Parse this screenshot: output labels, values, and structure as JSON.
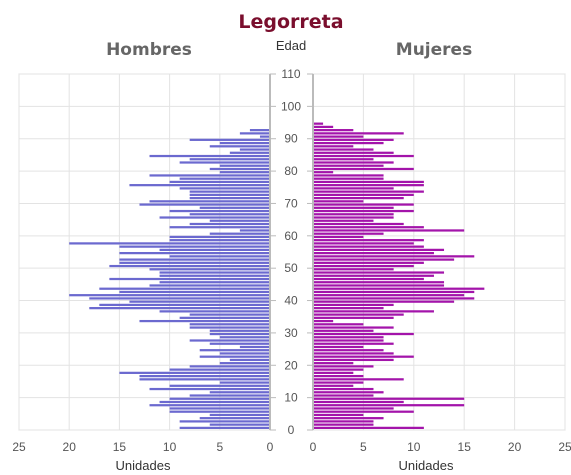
{
  "chart_data": {
    "type": "bar",
    "title": "Legorreta",
    "panels": [
      {
        "name": "Hombres",
        "xlabel": "Unidades",
        "color": "#6b69cf"
      },
      {
        "name": "Mujeres",
        "xlabel": "Unidades",
        "color": "#a314aa"
      }
    ],
    "ylabel": "Edad",
    "y_ticks": [
      "0",
      "10",
      "20",
      "30",
      "40",
      "50",
      "60",
      "70",
      "80",
      "90",
      "100",
      "110"
    ],
    "x_ticks": [
      "25",
      "20",
      "15",
      "10",
      "5",
      "0"
    ],
    "x_ticks_right": [
      "0",
      "5",
      "10",
      "15",
      "20",
      "25"
    ],
    "xlim": [
      0,
      25
    ],
    "ylim": [
      0,
      110
    ],
    "grid": true,
    "ages": [
      0,
      1,
      2,
      3,
      4,
      5,
      6,
      7,
      8,
      9,
      10,
      11,
      12,
      13,
      14,
      15,
      16,
      17,
      18,
      19,
      20,
      21,
      22,
      23,
      24,
      25,
      26,
      27,
      28,
      29,
      30,
      31,
      32,
      33,
      34,
      35,
      36,
      37,
      38,
      39,
      40,
      41,
      42,
      43,
      44,
      45,
      46,
      47,
      48,
      49,
      50,
      51,
      52,
      53,
      54,
      55,
      56,
      57,
      58,
      59,
      60,
      61,
      62,
      63,
      64,
      65,
      66,
      67,
      68,
      69,
      70,
      71,
      72,
      73,
      74,
      75,
      76,
      77,
      78,
      79,
      80,
      81,
      82,
      83,
      84,
      85,
      86,
      87,
      88,
      89,
      90,
      91,
      92,
      93,
      94,
      95
    ],
    "series": [
      {
        "name": "Hombres",
        "values": [
          9,
          6,
          9,
          7,
          6,
          10,
          10,
          12,
          11,
          10,
          8,
          6,
          12,
          10,
          5,
          13,
          13,
          15,
          10,
          8,
          5,
          4,
          7,
          5,
          7,
          3,
          6,
          8,
          5,
          6,
          6,
          8,
          8,
          13,
          9,
          8,
          11,
          18,
          17,
          14,
          18,
          20,
          15,
          17,
          12,
          11,
          16,
          11,
          11,
          12,
          16,
          15,
          15,
          10,
          15,
          11,
          15,
          20,
          10,
          10,
          6,
          3,
          10,
          8,
          6,
          11,
          8,
          10,
          7,
          13,
          12,
          8,
          8,
          8,
          9,
          14,
          10,
          9,
          12,
          5,
          6,
          5,
          9,
          8,
          12,
          4,
          3,
          6,
          5,
          8,
          1,
          3,
          2,
          0,
          0,
          0
        ]
      },
      {
        "name": "Mujeres",
        "values": [
          11,
          6,
          6,
          7,
          5,
          10,
          8,
          15,
          9,
          15,
          6,
          7,
          6,
          4,
          5,
          9,
          5,
          4,
          5,
          6,
          4,
          8,
          10,
          8,
          7,
          5,
          8,
          7,
          7,
          10,
          6,
          8,
          5,
          2,
          8,
          9,
          12,
          7,
          8,
          14,
          16,
          15,
          16,
          17,
          13,
          13,
          11,
          12,
          13,
          8,
          10,
          11,
          14,
          16,
          12,
          13,
          11,
          10,
          11,
          5,
          7,
          15,
          11,
          9,
          6,
          8,
          8,
          10,
          8,
          10,
          5,
          9,
          10,
          11,
          8,
          11,
          11,
          7,
          7,
          2,
          10,
          7,
          8,
          6,
          10,
          8,
          6,
          4,
          7,
          8,
          5,
          9,
          4,
          2,
          1,
          0
        ]
      }
    ]
  }
}
